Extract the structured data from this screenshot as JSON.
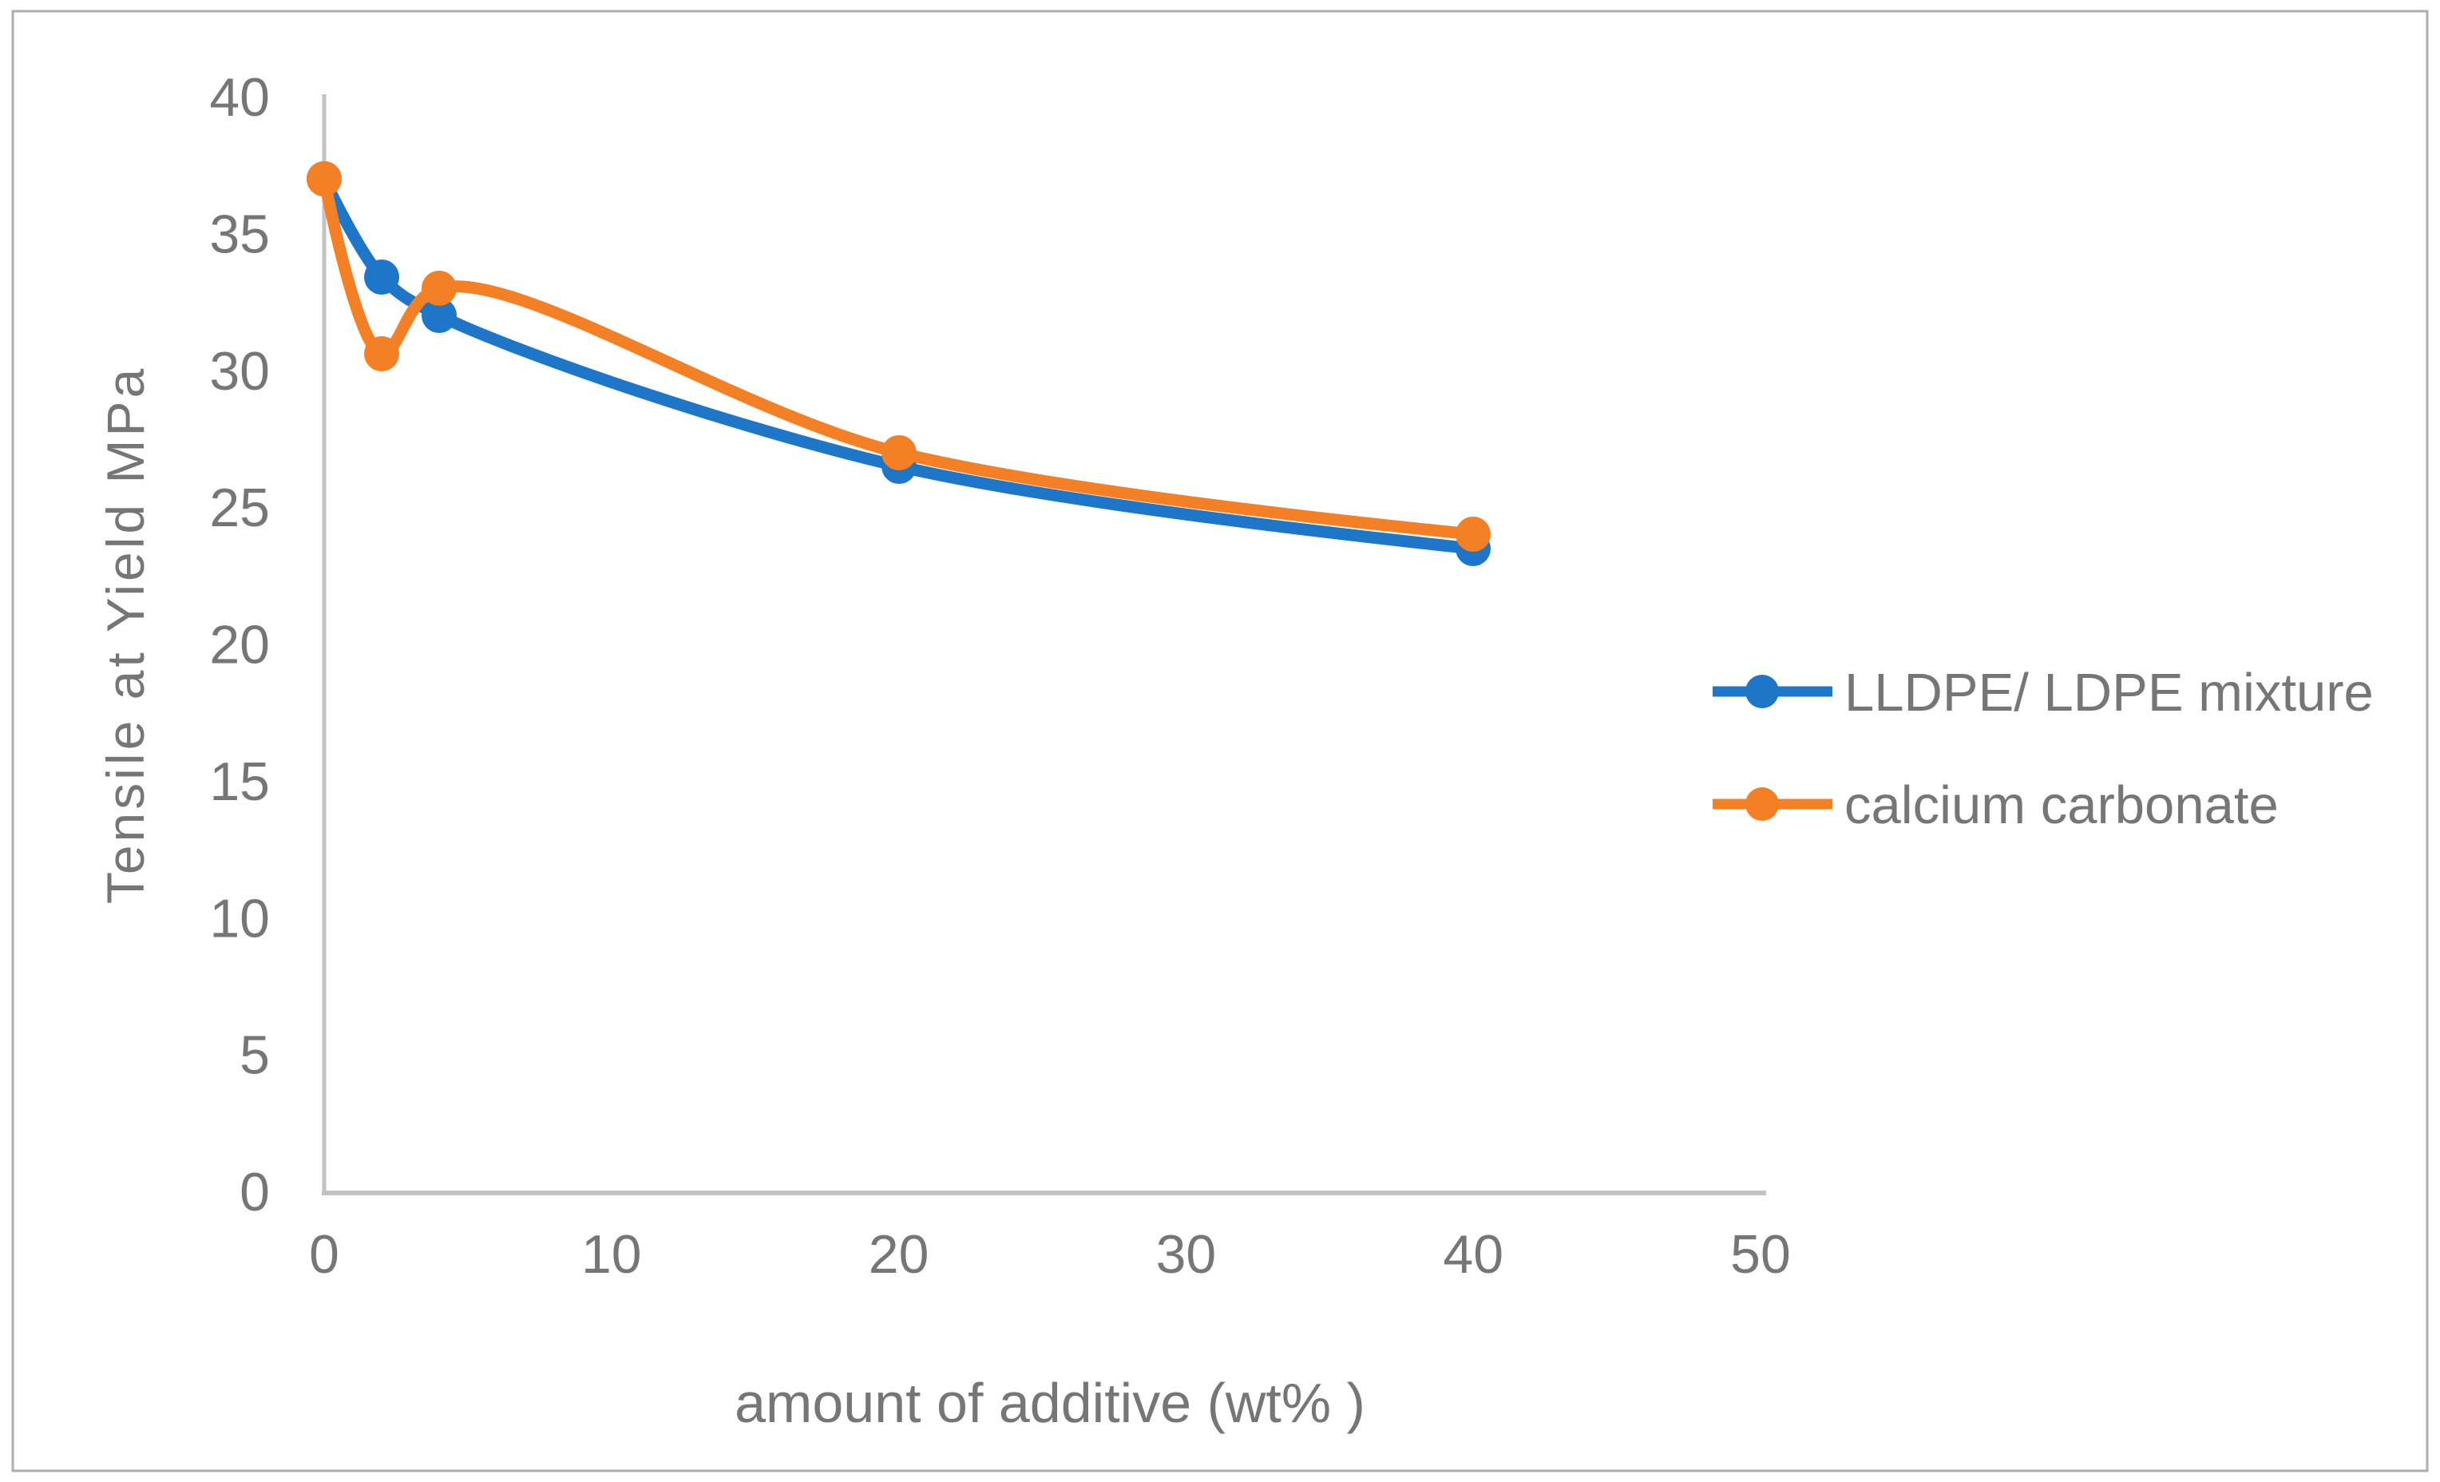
{
  "chart_data": {
    "type": "line",
    "smooth": true,
    "x": [
      0,
      2,
      4,
      20,
      40
    ],
    "series": [
      {
        "name": "LLDPE/ LDPE mixture",
        "color": "#1E76C8",
        "values": [
          37,
          33.4,
          32,
          26.5,
          23.5
        ]
      },
      {
        "name": "calcium carbonate",
        "color": "#F38025",
        "values": [
          37,
          30.6,
          33,
          27,
          24
        ]
      }
    ],
    "title": "",
    "xlabel": "amount of additive (wt% )",
    "ylabel": "Tensile at Yield MPa",
    "xlim": [
      0,
      50
    ],
    "ylim": [
      0,
      40
    ],
    "xticks": [
      0,
      10,
      20,
      30,
      40,
      50
    ],
    "yticks": [
      0,
      5,
      10,
      15,
      20,
      25,
      30,
      35,
      40
    ],
    "grid": false,
    "legend_position": "center-right",
    "axis_color": "#C3C3C3",
    "tick_text_color": "#767676",
    "border_color": "#ADADAD",
    "marker": "circle"
  }
}
